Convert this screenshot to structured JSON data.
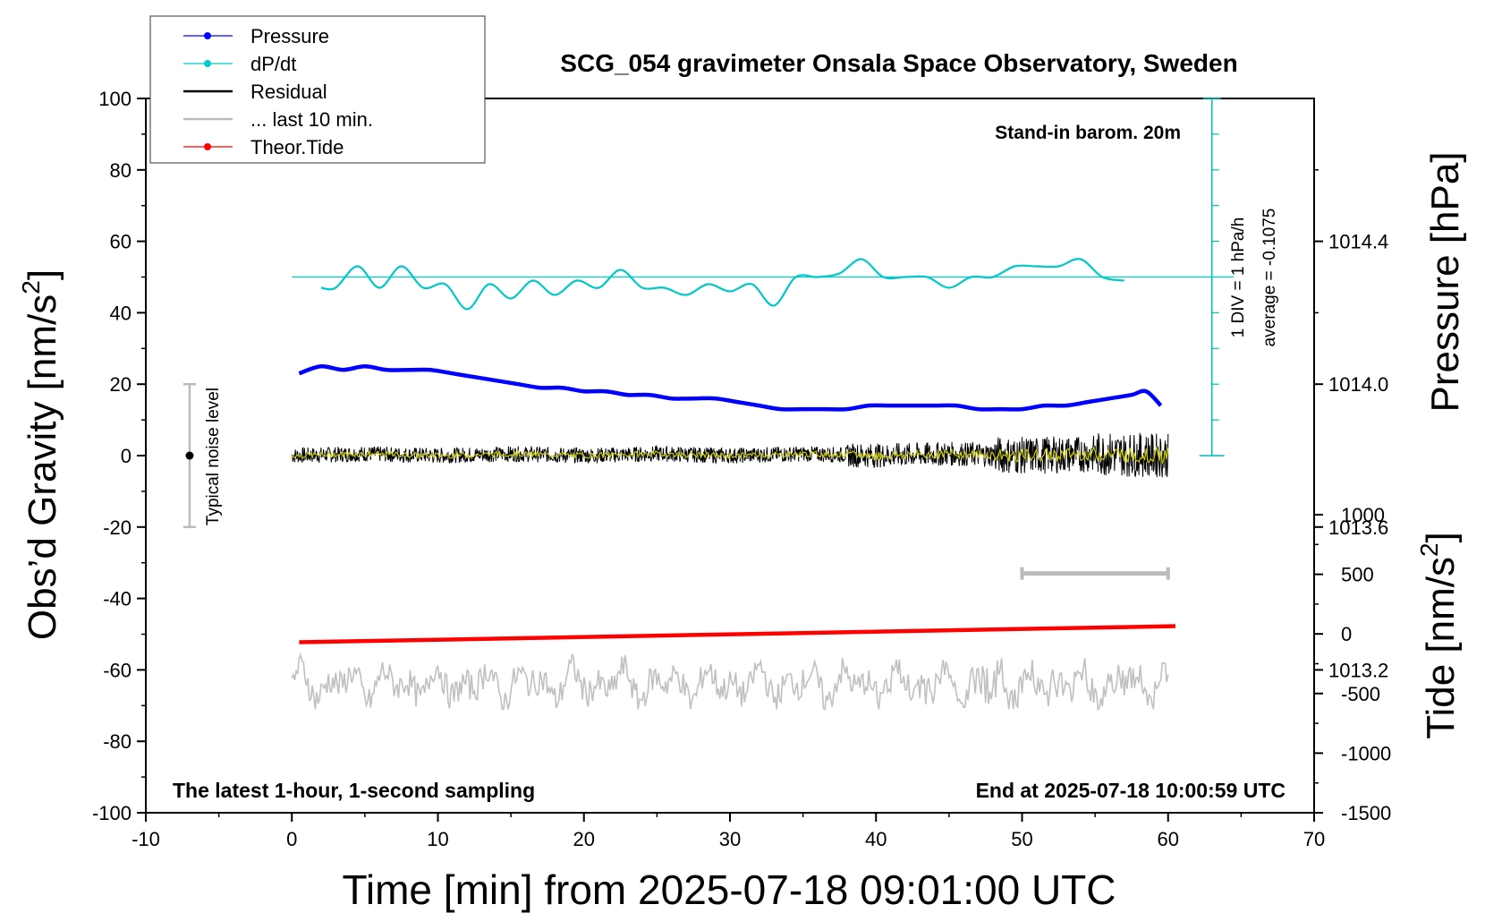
{
  "chart_data": {
    "type": "line",
    "title": "SCG_054 gravimeter Onsala Space Observatory, Sweden",
    "xlabel": "Time [min] from 2025-07-18 09:01:00 UTC",
    "ylabel": "Obs’d Gravity [nm/s",
    "ylabel_sup": "2",
    "ylabel_close": "]",
    "y2label_pressure": "Pressure [hPa]",
    "y2label_tide": "Tide [nm/s",
    "y2label_tide_sup": "2",
    "y2label_tide_close": "]",
    "xlim": [
      -10,
      70
    ],
    "ylim": [
      -100,
      100
    ],
    "pressure_lim": [
      1012.8,
      1014.8
    ],
    "tide_lim": [
      -1500,
      1000
    ],
    "x_ticks": [
      "-10",
      "0",
      "10",
      "20",
      "30",
      "40",
      "50",
      "60",
      "70"
    ],
    "y_ticks": [
      "-100",
      "-80",
      "-60",
      "-40",
      "-20",
      "0",
      "20",
      "40",
      "60",
      "80",
      "100"
    ],
    "pressure_ticks": [
      "1013.2",
      "1013.6",
      "1014.0",
      "1014.4"
    ],
    "tide_ticks": [
      "-1500",
      "-1000",
      "-500",
      "0",
      "500",
      "1000"
    ],
    "legend_position": "top-left",
    "legend": [
      {
        "label": "Pressure",
        "color": "#0000ff",
        "marker": true
      },
      {
        "label": "dP/dt",
        "color": "#00cccc",
        "marker": true
      },
      {
        "label": "Residual",
        "color": "#000000",
        "marker": false
      },
      {
        "label": "... last 10 min.",
        "color": "#bbbbbb",
        "marker": false
      },
      {
        "label": "Theor.Tide",
        "color": "#ff0000",
        "marker": true
      }
    ],
    "annotations": {
      "barometer": "Stand-in barom. 20m",
      "scale_div": "1 DIV = 1 hPa/h",
      "average": "average = -0.1075",
      "noise": "Typical noise level",
      "bottom_left": "The latest 1-hour, 1-second sampling",
      "bottom_right": "End at 2025-07-18 10:00:59 UTC"
    },
    "series": [
      {
        "name": "Pressure",
        "axis": "pressure",
        "color": "#0000ff",
        "x": [
          0.5,
          2,
          3.5,
          5,
          6.5,
          8,
          9.5,
          11,
          12.5,
          14,
          15.5,
          17,
          18.5,
          20,
          21.5,
          23,
          24.5,
          26,
          27.5,
          29,
          30.5,
          32,
          33.5,
          35,
          36.5,
          38,
          39.5,
          41,
          42.5,
          44,
          45.5,
          47,
          48.5,
          50,
          51.5,
          53,
          54.5,
          56,
          57.5,
          58.5,
          59.5
        ],
        "values": [
          1014.03,
          1014.05,
          1014.04,
          1014.05,
          1014.04,
          1014.04,
          1014.04,
          1014.03,
          1014.02,
          1014.01,
          1014.0,
          1013.99,
          1013.99,
          1013.98,
          1013.98,
          1013.97,
          1013.97,
          1013.96,
          1013.96,
          1013.96,
          1013.95,
          1013.94,
          1013.93,
          1013.93,
          1013.93,
          1013.93,
          1013.94,
          1013.94,
          1013.94,
          1013.94,
          1013.94,
          1013.93,
          1013.93,
          1013.93,
          1013.94,
          1013.94,
          1013.95,
          1013.96,
          1013.97,
          1013.98,
          1013.94
        ]
      },
      {
        "name": "dP/dt",
        "axis": "gravity",
        "color": "#00cccc",
        "baseline": 50,
        "x": [
          2,
          3,
          4.5,
          6,
          7.5,
          9,
          10.5,
          12,
          13.5,
          15,
          16.5,
          18,
          19.5,
          21,
          22.5,
          24,
          25.5,
          27,
          28.5,
          30,
          31.5,
          33,
          34.5,
          36,
          37.5,
          39,
          40.5,
          42,
          43.5,
          45,
          46.5,
          48,
          49.5,
          51,
          52.5,
          54,
          55.5,
          57
        ],
        "values": [
          47,
          47,
          53,
          47,
          53,
          47,
          48,
          41,
          48,
          44,
          49,
          45,
          49,
          47,
          52,
          47,
          47,
          45,
          48,
          46,
          48,
          42,
          50,
          50,
          51,
          55,
          50,
          50,
          50,
          47,
          50,
          50,
          53,
          53,
          53,
          55,
          50,
          49
        ]
      },
      {
        "name": "Residual",
        "axis": "gravity",
        "color": "#000000",
        "x": [
          0,
          5,
          10,
          15,
          20,
          25,
          30,
          35,
          40,
          45,
          50,
          55,
          60
        ],
        "values": [
          0,
          0.5,
          0,
          0.5,
          0,
          0.5,
          0,
          0.5,
          0,
          0.5,
          0,
          0.5,
          0
        ]
      },
      {
        "name": "... last 10 min.",
        "axis": "gravity",
        "color": "#bbbbbb",
        "x": [
          50,
          60
        ],
        "values": [
          -33,
          -33
        ]
      },
      {
        "name": "Theor.Tide",
        "axis": "tide",
        "color": "#ff0000",
        "x": [
          0.5,
          60.5
        ],
        "values": [
          -70,
          65
        ]
      }
    ],
    "noise_bar": {
      "x": -7,
      "center": 0,
      "low": -20,
      "high": 20
    }
  }
}
